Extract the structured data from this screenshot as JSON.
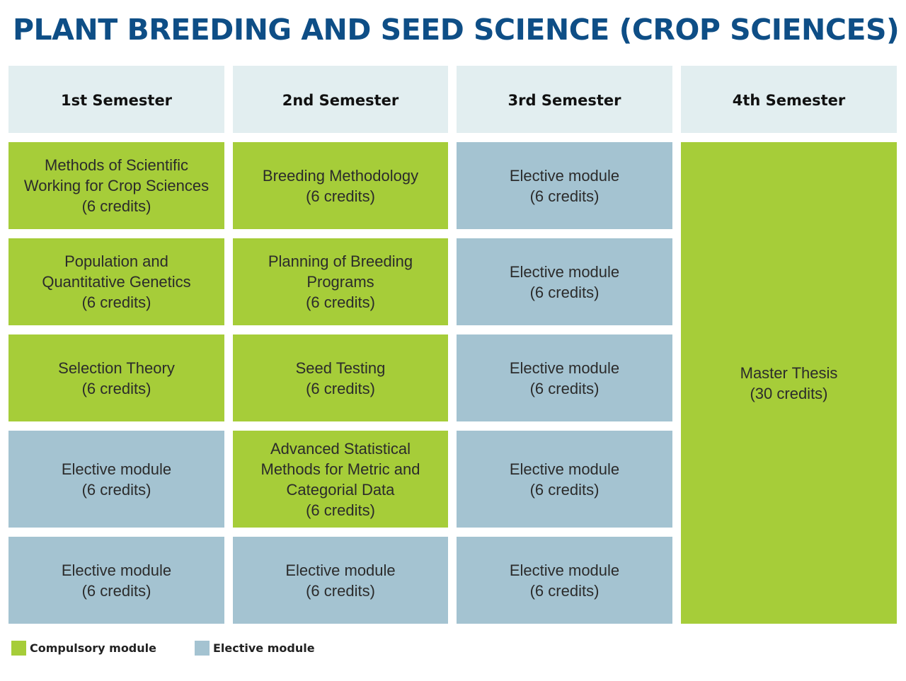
{
  "title": "PLANT BREEDING AND SEED SCIENCE (CROP SCIENCES)",
  "colors": {
    "compulsory": "#a6cd39",
    "elective": "#a4c3d1",
    "header": "#e2eef0",
    "title": "#0e4e86"
  },
  "semesters": [
    "1st Semester",
    "2nd Semester",
    "3rd Semester",
    "4th Semester"
  ],
  "modules": {
    "s1": [
      "Methods of Scientific\nWorking for Crop Sciences\n(6 credits)",
      "Population and\nQuantitative Genetics\n(6 credits)",
      "Selection Theory\n(6 credits)",
      "Elective module\n(6 credits)",
      "Elective module\n(6 credits)"
    ],
    "s2": [
      "Breeding Methodology\n(6 credits)",
      "Planning of Breeding\nPrograms\n(6 credits)",
      "Seed Testing\n(6 credits)",
      "Advanced Statistical\nMethods for Metric and\nCategorial Data\n(6 credits)",
      "Elective module\n(6 credits)"
    ],
    "s3": [
      "Elective module\n(6 credits)",
      "Elective module\n(6 credits)",
      "Elective module\n(6 credits)",
      "Elective module\n(6 credits)",
      "Elective module\n(6 credits)"
    ],
    "s4": "Master Thesis\n(30 credits)"
  },
  "legend": {
    "compulsory": "Compulsory module",
    "elective": "Elective module"
  }
}
